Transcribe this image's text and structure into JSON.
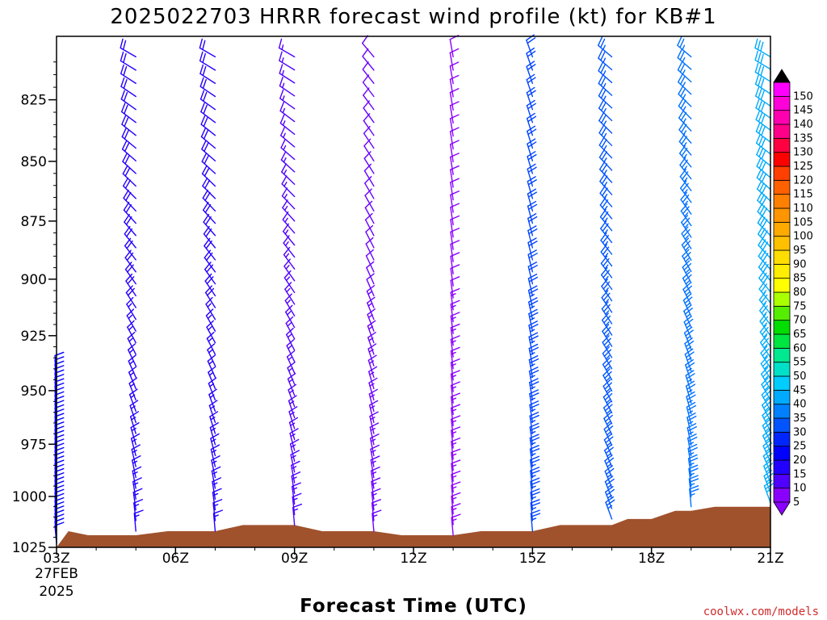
{
  "chart_data": {
    "type": "wind-barb-timeseries",
    "title": "2025022703 HRRR forecast wind profile (kt) for KB#1",
    "xlabel": "Forecast Time (UTC)",
    "credit": "coolwx.com/models",
    "x_ticks": [
      "03Z",
      "06Z",
      "09Z",
      "12Z",
      "15Z",
      "18Z",
      "21Z"
    ],
    "x_tick_first_date": "27FEB",
    "x_tick_first_year": "2025",
    "xlim": [
      3,
      21
    ],
    "y_label_ticks": [
      1025,
      1000,
      975,
      950,
      925,
      900,
      875,
      850,
      825
    ],
    "y_axis": "pressure (hPa), log scale, inverted",
    "ylim": [
      1025,
      800
    ],
    "colorbar": {
      "levels": [
        "5",
        "10",
        "15",
        "20",
        "25",
        "30",
        "35",
        "40",
        "45",
        "50",
        "55",
        "60",
        "65",
        "70",
        "75",
        "80",
        "85",
        "90",
        "95",
        "100",
        "105",
        "110",
        "115",
        "120",
        "125",
        "130",
        "135",
        "140",
        "145",
        "150"
      ],
      "colors": [
        "#8a00ff",
        "#4f00ff",
        "#2200ff",
        "#0000ff",
        "#0026ff",
        "#0055ff",
        "#0080ff",
        "#00aaff",
        "#00ccff",
        "#00e0c8",
        "#00e890",
        "#00e640",
        "#00dd00",
        "#55ee00",
        "#aaff00",
        "#ffff00",
        "#ffee00",
        "#ffdd00",
        "#ffc000",
        "#ffaa00",
        "#ff9500",
        "#ff8000",
        "#ff6000",
        "#ff4000",
        "#ff0000",
        "#ff0040",
        "#ff0088",
        "#ff00b0",
        "#ff00d8",
        "#ff00ff"
      ]
    },
    "terrain": {
      "color": "#a0522d",
      "times": [
        3,
        3.3,
        3.8,
        5,
        5.8,
        7,
        7.7,
        9,
        9.7,
        11,
        11.7,
        13,
        13.7,
        15,
        15.7,
        17,
        17.4,
        18,
        18.6,
        19,
        19.6,
        21
      ],
      "pressure": [
        1025,
        1017,
        1019,
        1019,
        1017,
        1017,
        1014,
        1014,
        1017,
        1017,
        1019,
        1019,
        1017,
        1017,
        1014,
        1014,
        1011,
        1011,
        1007,
        1007,
        1005,
        1005
      ]
    },
    "profiles": [
      {
        "time": 3,
        "color": "#0000ff",
        "dir_bottom": 355,
        "dir_top": 355,
        "spd_bottom": 10,
        "spd_top": 10,
        "p_bottom": 1023,
        "p_top": 942
      },
      {
        "time": 5,
        "color": "#2200ff",
        "dir_bottom": 355,
        "dir_top": 300,
        "spd_bottom": 15,
        "spd_top": 20,
        "p_bottom": 1017,
        "p_top": 808
      },
      {
        "time": 7,
        "color": "#2200ff",
        "dir_bottom": 355,
        "dir_top": 300,
        "spd_bottom": 15,
        "spd_top": 20,
        "p_bottom": 1017,
        "p_top": 808
      },
      {
        "time": 9,
        "color": "#4f00ff",
        "dir_bottom": 355,
        "dir_top": 300,
        "spd_bottom": 15,
        "spd_top": 15,
        "p_bottom": 1014,
        "p_top": 808
      },
      {
        "time": 11,
        "color": "#6a00ff",
        "dir_bottom": 355,
        "dir_top": 320,
        "spd_bottom": 15,
        "spd_top": 10,
        "p_bottom": 1017,
        "p_top": 808
      },
      {
        "time": 13,
        "color": "#8a00ff",
        "dir_bottom": 355,
        "dir_top": 350,
        "spd_bottom": 15,
        "spd_top": 10,
        "p_bottom": 1019,
        "p_top": 808
      },
      {
        "time": 15,
        "color": "#0044ff",
        "dir_bottom": 355,
        "dir_top": 340,
        "spd_bottom": 25,
        "spd_top": 20,
        "p_bottom": 1017,
        "p_top": 808
      },
      {
        "time": 17,
        "color": "#0055ff",
        "dir_bottom": 340,
        "dir_top": 310,
        "spd_bottom": 25,
        "spd_top": 25,
        "p_bottom": 1011,
        "p_top": 808
      },
      {
        "time": 19,
        "color": "#0070ff",
        "dir_bottom": 355,
        "dir_top": 310,
        "spd_bottom": 25,
        "spd_top": 25,
        "p_bottom": 1005,
        "p_top": 808
      },
      {
        "time": 21,
        "color": "#00aaff",
        "dir_bottom": 340,
        "dir_top": 300,
        "spd_bottom": 25,
        "spd_top": 30,
        "p_bottom": 1003,
        "p_top": 808
      }
    ]
  }
}
